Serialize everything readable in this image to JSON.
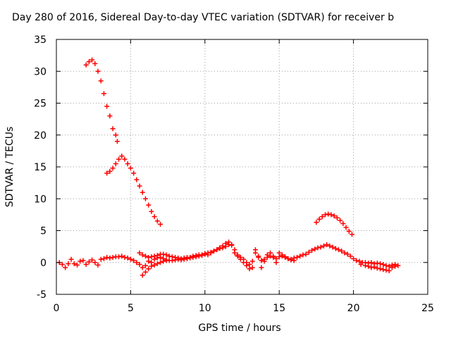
{
  "chart_data": {
    "type": "scatter",
    "title": "Day 280 of 2016, Sidereal Day-to-day VTEC variation (SDTVAR) for receiver b",
    "xlabel": "GPS time / hours",
    "ylabel": "SDTVAR / TECUs",
    "xlim": [
      0,
      25
    ],
    "ylim": [
      -5,
      35
    ],
    "xticks": [
      0,
      5,
      10,
      15,
      20,
      25
    ],
    "yticks": [
      -5,
      0,
      5,
      10,
      15,
      20,
      25,
      30,
      35
    ],
    "grid": true,
    "marker": "+",
    "color": "#ff0000",
    "series": [
      {
        "x": [
          2.0,
          2.2,
          2.4,
          2.6,
          2.8,
          3.0,
          3.2,
          3.4,
          3.6,
          3.8,
          4.0,
          4.1
        ],
        "y": [
          31.0,
          31.5,
          31.8,
          31.2,
          30.0,
          28.5,
          26.5,
          24.5,
          23.0,
          21.0,
          20.0,
          19.0
        ]
      },
      {
        "x": [
          3.4,
          3.6,
          3.8,
          4.0,
          4.2,
          4.4,
          4.6,
          4.8,
          5.0,
          5.2,
          5.4,
          5.6,
          5.8,
          6.0,
          6.2,
          6.4,
          6.6,
          6.8,
          7.0
        ],
        "y": [
          14.0,
          14.3,
          14.8,
          15.5,
          16.2,
          16.7,
          16.2,
          15.5,
          14.8,
          14.0,
          13.0,
          12.0,
          11.0,
          10.0,
          9.0,
          8.0,
          7.2,
          6.5,
          6.0
        ]
      },
      {
        "x": [
          17.5,
          17.7,
          17.9,
          18.1,
          18.3,
          18.5,
          18.7,
          18.9,
          19.1,
          19.3,
          19.5,
          19.7,
          19.9
        ],
        "y": [
          6.3,
          6.8,
          7.2,
          7.5,
          7.6,
          7.5,
          7.3,
          7.0,
          6.6,
          6.1,
          5.5,
          4.9,
          4.4
        ]
      },
      {
        "x": [
          0.2,
          0.4,
          0.6,
          0.8,
          1.0,
          1.2,
          1.4,
          1.6,
          1.8,
          2.0,
          2.2,
          2.4,
          2.6,
          2.8,
          3.0,
          3.2,
          3.4,
          3.6,
          3.8,
          4.0,
          4.2,
          4.4,
          4.6,
          4.8,
          5.0,
          5.2,
          5.4,
          5.6,
          5.8,
          6.0,
          6.2,
          6.4,
          6.6,
          6.8,
          7.0,
          7.2,
          7.4,
          7.6,
          7.8,
          8.0,
          8.2,
          8.4,
          8.6,
          8.8,
          9.0,
          9.2,
          9.4,
          9.6,
          9.8,
          10.0,
          10.2,
          10.4,
          10.6,
          10.8,
          11.0,
          11.2,
          11.4,
          11.6,
          11.8,
          12.0,
          12.2,
          12.4,
          12.6,
          12.8,
          13.0,
          13.2,
          13.4,
          13.6,
          13.8,
          14.0,
          14.2,
          14.4,
          14.6,
          14.8,
          15.0,
          15.2,
          15.4,
          15.6,
          15.8,
          16.0,
          16.2,
          16.4,
          16.6,
          16.8,
          17.0,
          17.2,
          17.4,
          17.6,
          17.8,
          18.0,
          18.2,
          18.4,
          18.6,
          18.8,
          19.0,
          19.2,
          19.4,
          19.6,
          19.8,
          20.0,
          20.2,
          20.4,
          20.6,
          20.8,
          21.0,
          21.2,
          21.4,
          21.6,
          21.8,
          22.0,
          22.2,
          22.4,
          22.6,
          22.8
        ],
        "y": [
          0.0,
          -0.3,
          -0.8,
          -0.2,
          0.5,
          -0.2,
          -0.4,
          0.2,
          0.3,
          -0.3,
          0.1,
          0.4,
          0.0,
          -0.4,
          0.5,
          0.6,
          0.8,
          0.7,
          0.8,
          0.9,
          0.9,
          1.0,
          0.8,
          0.7,
          0.5,
          0.3,
          0.0,
          -0.3,
          -0.8,
          -0.5,
          0.2,
          0.0,
          0.5,
          0.7,
          0.8,
          0.6,
          0.4,
          0.3,
          0.3,
          0.4,
          0.5,
          0.4,
          0.5,
          0.6,
          0.7,
          0.8,
          0.9,
          1.0,
          1.1,
          1.3,
          1.2,
          1.5,
          1.8,
          2.0,
          2.2,
          2.3,
          2.5,
          2.8,
          2.7,
          1.5,
          1.0,
          0.5,
          0.0,
          -0.5,
          -0.3,
          0.2,
          1.5,
          0.8,
          0.3,
          0.5,
          0.8,
          1.0,
          0.8,
          0.6,
          0.9,
          1.0,
          0.8,
          0.6,
          0.5,
          0.7,
          0.8,
          1.0,
          1.2,
          1.3,
          1.6,
          1.9,
          2.1,
          2.3,
          2.4,
          2.6,
          2.8,
          2.6,
          2.4,
          2.2,
          2.0,
          1.8,
          1.5,
          1.3,
          1.0,
          0.6,
          0.3,
          0.2,
          0.0,
          0.0,
          -0.1,
          0.0,
          -0.2,
          -0.1,
          -0.2,
          -0.3,
          -0.5,
          -0.6,
          -0.4,
          -0.3
        ]
      },
      {
        "x": [
          5.6,
          5.8,
          6.0,
          6.2,
          6.4,
          6.6,
          6.8,
          7.0,
          7.2,
          7.4,
          7.6,
          7.8,
          8.0,
          8.2,
          8.4,
          8.6,
          8.8,
          9.0,
          9.2,
          9.4,
          9.6,
          9.8,
          10.0,
          10.2,
          10.4,
          10.6,
          10.8,
          11.0,
          11.2,
          11.4,
          11.6,
          11.8,
          12.0,
          12.2,
          12.4,
          12.6,
          12.8,
          13.0,
          13.2
        ],
        "y": [
          1.5,
          1.2,
          1.0,
          0.8,
          0.9,
          1.0,
          1.1,
          1.3,
          1.3,
          1.2,
          1.0,
          0.9,
          0.8,
          0.7,
          0.6,
          0.7,
          0.8,
          0.8,
          1.0,
          1.1,
          1.2,
          1.2,
          1.4,
          1.5,
          1.6,
          1.8,
          2.0,
          2.3,
          2.6,
          3.0,
          3.2,
          2.8,
          2.0,
          1.2,
          0.8,
          0.5,
          0.0,
          -1.0,
          -0.8
        ]
      },
      {
        "x": [
          5.8,
          6.0,
          6.2,
          6.4,
          6.6,
          6.8,
          7.0,
          7.2,
          7.4
        ],
        "y": [
          -2.0,
          -1.5,
          -1.0,
          -0.6,
          -0.4,
          -0.2,
          0.0,
          0.2,
          0.3
        ]
      },
      {
        "x": [
          13.4,
          13.6,
          13.8,
          14.0,
          14.2,
          14.4,
          14.6,
          14.8,
          15.0,
          15.2,
          15.4,
          15.6,
          15.8,
          16.0
        ],
        "y": [
          2.0,
          1.0,
          -0.8,
          0.2,
          1.2,
          1.5,
          1.0,
          0.0,
          1.5,
          1.2,
          0.9,
          0.6,
          0.4,
          0.3
        ]
      },
      {
        "x": [
          20.5,
          20.8,
          21.0,
          21.2,
          21.4,
          21.6,
          21.8,
          22.0,
          22.2,
          22.4,
          22.6,
          22.8,
          23.0
        ],
        "y": [
          -0.3,
          -0.5,
          -0.6,
          -0.8,
          -0.7,
          -0.9,
          -1.0,
          -1.1,
          -1.2,
          -1.3,
          -0.8,
          -0.6,
          -0.5
        ]
      }
    ]
  }
}
